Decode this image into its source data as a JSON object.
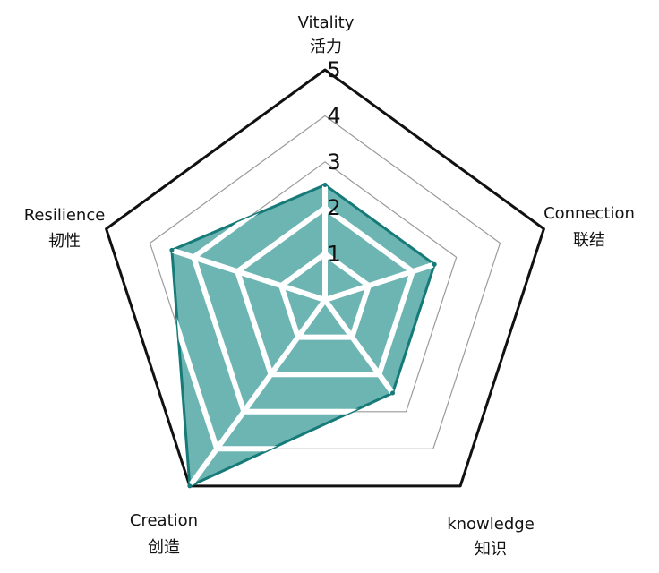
{
  "chart_data": {
    "type": "radar",
    "title": "",
    "axes": [
      {
        "en": "Vitality",
        "zh": "活力"
      },
      {
        "en": "Connection",
        "zh": "联结"
      },
      {
        "en": "knowledge",
        "zh": "知识"
      },
      {
        "en": "Creation",
        "zh": "创造"
      },
      {
        "en": "Resilience",
        "zh": "韧性"
      }
    ],
    "r_ticks": [
      "1",
      "2",
      "3",
      "4",
      "5"
    ],
    "r_range": [
      0,
      5
    ],
    "series": [
      {
        "values": [
          2.5,
          2.5,
          2.5,
          5.0,
          3.5
        ]
      }
    ],
    "colors": {
      "fill": "#6db5b2",
      "stroke": "#157a78",
      "grid": "#9a9a9a",
      "outer": "#111111",
      "segment_gap": "#ffffff"
    }
  }
}
